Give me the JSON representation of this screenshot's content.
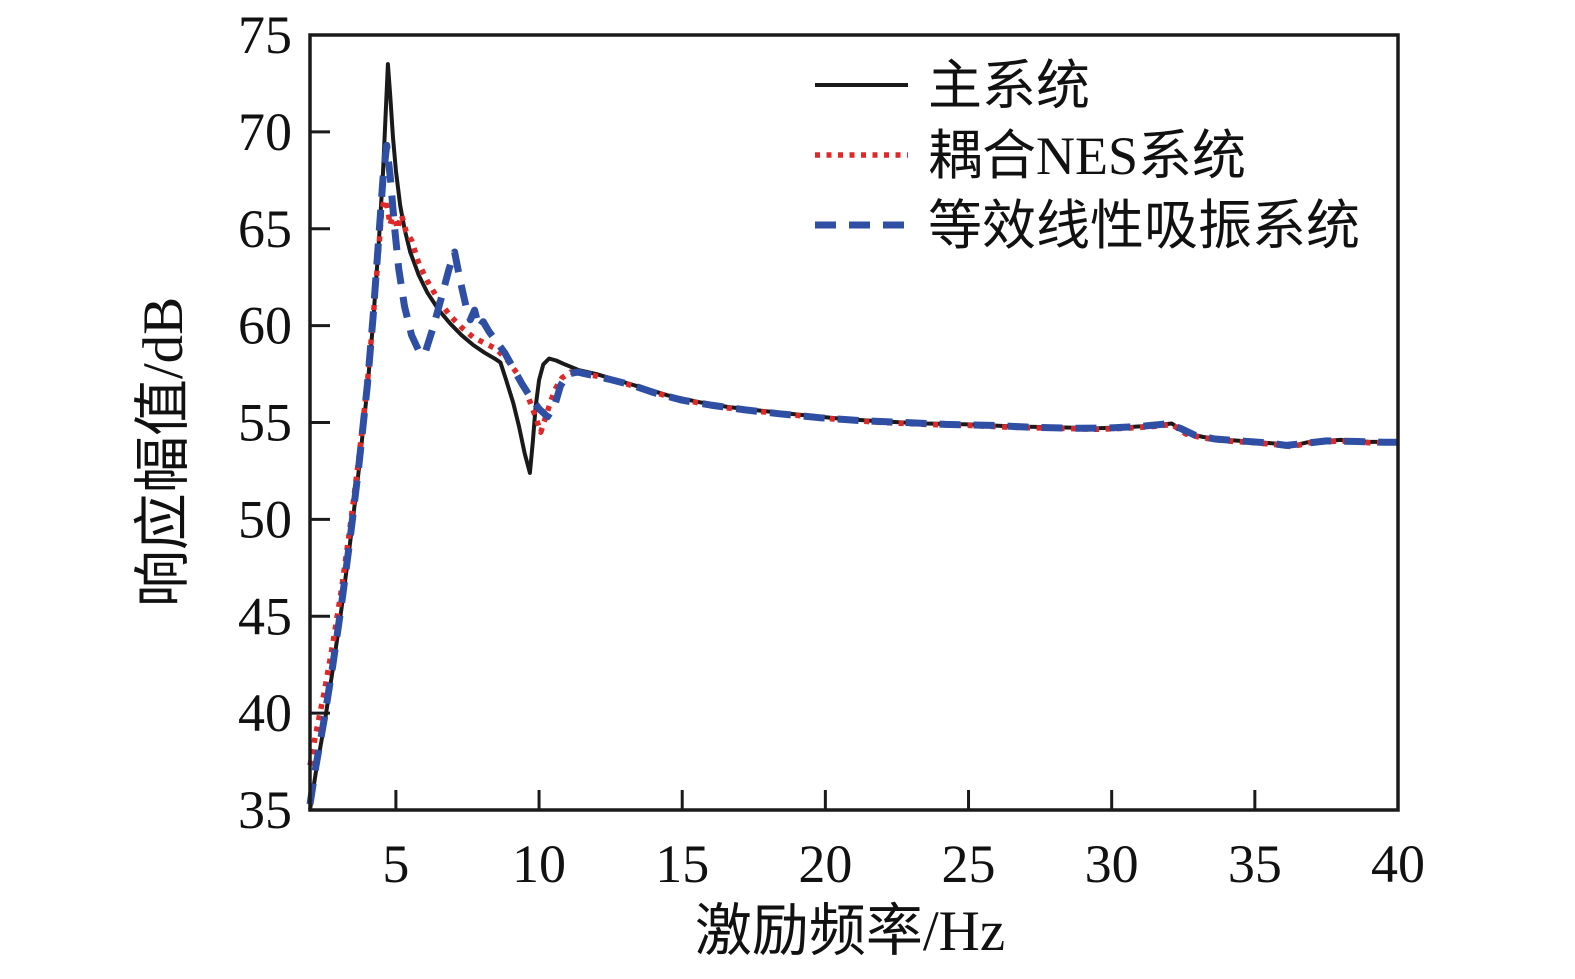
{
  "figure": {
    "background": "#ffffff",
    "frame_color": "#1a1a1a"
  },
  "chart_data": {
    "type": "line",
    "title": "",
    "xlabel": "激励频率/Hz",
    "ylabel": "响应幅值/dB",
    "xlim": [
      2,
      40
    ],
    "ylim": [
      35,
      75
    ],
    "xticks": [
      5,
      10,
      15,
      20,
      25,
      30,
      35,
      40
    ],
    "yticks": [
      35,
      40,
      45,
      50,
      55,
      60,
      65,
      70,
      75
    ],
    "grid": false,
    "legend_position": "top-right",
    "series": [
      {
        "name": "主系统",
        "style": "solid",
        "color": "#1a1a1a",
        "points": [
          [
            2,
            35.0
          ],
          [
            2.2,
            36.9
          ],
          [
            2.5,
            39.4
          ],
          [
            2.8,
            42.3
          ],
          [
            3.1,
            45.4
          ],
          [
            3.4,
            48.8
          ],
          [
            3.7,
            52.5
          ],
          [
            4.0,
            56.7
          ],
          [
            4.2,
            60.1
          ],
          [
            4.4,
            64.2
          ],
          [
            4.55,
            67.9
          ],
          [
            4.65,
            71.2
          ],
          [
            4.72,
            73.5
          ],
          [
            4.8,
            71.9
          ],
          [
            4.9,
            69.7
          ],
          [
            5.0,
            68.0
          ],
          [
            5.15,
            66.2
          ],
          [
            5.3,
            65.0
          ],
          [
            5.5,
            63.8
          ],
          [
            5.8,
            62.6
          ],
          [
            6.1,
            61.7
          ],
          [
            6.5,
            60.8
          ],
          [
            6.9,
            60.1
          ],
          [
            7.3,
            59.5
          ],
          [
            7.7,
            59.0
          ],
          [
            8.1,
            58.6
          ],
          [
            8.45,
            58.3
          ],
          [
            8.65,
            58.1
          ],
          [
            8.85,
            57.2
          ],
          [
            9.1,
            56.0
          ],
          [
            9.3,
            54.8
          ],
          [
            9.5,
            53.4
          ],
          [
            9.68,
            52.4
          ],
          [
            9.78,
            54.0
          ],
          [
            9.88,
            55.8
          ],
          [
            10.0,
            57.2
          ],
          [
            10.15,
            58.0
          ],
          [
            10.35,
            58.3
          ],
          [
            10.6,
            58.2
          ],
          [
            10.9,
            58.0
          ],
          [
            11.4,
            57.7
          ],
          [
            12.0,
            57.5
          ],
          [
            12.8,
            57.15
          ],
          [
            13.6,
            56.8
          ],
          [
            14.5,
            56.4
          ],
          [
            15.6,
            56.05
          ],
          [
            16.6,
            55.8
          ],
          [
            17.8,
            55.6
          ],
          [
            19.1,
            55.4
          ],
          [
            20.5,
            55.2
          ],
          [
            22,
            55.05
          ],
          [
            23.5,
            54.95
          ],
          [
            25,
            54.9
          ],
          [
            26.5,
            54.8
          ],
          [
            28,
            54.75
          ],
          [
            29.5,
            54.7
          ],
          [
            30.5,
            54.75
          ],
          [
            31.5,
            54.85
          ],
          [
            32.1,
            54.95
          ],
          [
            32.6,
            54.45
          ],
          [
            33.2,
            54.25
          ],
          [
            34,
            54.1
          ],
          [
            35,
            54.0
          ],
          [
            35.8,
            53.9
          ],
          [
            36.3,
            53.8
          ],
          [
            36.9,
            54.0
          ],
          [
            38,
            54.1
          ],
          [
            39,
            54.0
          ],
          [
            40,
            54.0
          ]
        ]
      },
      {
        "name": "耦合NES系统",
        "style": "dotted",
        "color": "#e02828",
        "points": [
          [
            2,
            37.3
          ],
          [
            2.2,
            38.9
          ],
          [
            2.5,
            41.1
          ],
          [
            2.8,
            43.6
          ],
          [
            3.1,
            46.4
          ],
          [
            3.4,
            49.6
          ],
          [
            3.7,
            53.1
          ],
          [
            4.0,
            57.0
          ],
          [
            4.2,
            60.3
          ],
          [
            4.35,
            63.0
          ],
          [
            4.5,
            65.9
          ],
          [
            4.6,
            66.5
          ],
          [
            4.7,
            66.1
          ],
          [
            4.8,
            65.2
          ],
          [
            4.92,
            65.9
          ],
          [
            5.05,
            65.0
          ],
          [
            5.2,
            65.7
          ],
          [
            5.35,
            64.9
          ],
          [
            5.55,
            64.4
          ],
          [
            5.8,
            63.2
          ],
          [
            6.1,
            62.3
          ],
          [
            6.5,
            61.3
          ],
          [
            6.9,
            60.5
          ],
          [
            7.3,
            59.9
          ],
          [
            7.7,
            59.4
          ],
          [
            8.1,
            59.1
          ],
          [
            8.5,
            58.8
          ],
          [
            8.9,
            58.2
          ],
          [
            9.25,
            57.5
          ],
          [
            9.55,
            56.6
          ],
          [
            9.85,
            55.4
          ],
          [
            10.06,
            54.5
          ],
          [
            10.3,
            55.6
          ],
          [
            10.55,
            56.7
          ],
          [
            10.8,
            57.3
          ],
          [
            11.1,
            57.6
          ],
          [
            11.6,
            57.5
          ],
          [
            12.0,
            57.4
          ],
          [
            12.8,
            57.1
          ],
          [
            13.6,
            56.75
          ],
          [
            14.5,
            56.35
          ],
          [
            15.6,
            56.0
          ],
          [
            16.6,
            55.75
          ],
          [
            17.8,
            55.55
          ],
          [
            19.1,
            55.35
          ],
          [
            20.5,
            55.15
          ],
          [
            22,
            55.0
          ],
          [
            23.5,
            54.9
          ],
          [
            25,
            54.85
          ],
          [
            26.5,
            54.75
          ],
          [
            28,
            54.7
          ],
          [
            29.5,
            54.65
          ],
          [
            30.5,
            54.7
          ],
          [
            31.5,
            54.8
          ],
          [
            32.1,
            54.9
          ],
          [
            32.6,
            54.4
          ],
          [
            33.2,
            54.2
          ],
          [
            34,
            54.05
          ],
          [
            35,
            53.95
          ],
          [
            35.8,
            53.85
          ],
          [
            36.3,
            53.75
          ],
          [
            36.9,
            53.95
          ],
          [
            38,
            54.05
          ],
          [
            39,
            53.95
          ],
          [
            40,
            53.95
          ]
        ]
      },
      {
        "name": "等效线性吸振系统",
        "style": "dashed",
        "color": "#2f4fa4",
        "points": [
          [
            2,
            35.3
          ],
          [
            2.2,
            37.2
          ],
          [
            2.5,
            39.7
          ],
          [
            2.8,
            42.5
          ],
          [
            3.1,
            45.6
          ],
          [
            3.4,
            49.0
          ],
          [
            3.7,
            52.7
          ],
          [
            4.0,
            56.9
          ],
          [
            4.2,
            60.4
          ],
          [
            4.4,
            64.5
          ],
          [
            4.55,
            67.6
          ],
          [
            4.68,
            69.3
          ],
          [
            4.8,
            67.7
          ],
          [
            4.95,
            65.1
          ],
          [
            5.1,
            62.9
          ],
          [
            5.3,
            61.0
          ],
          [
            5.55,
            59.5
          ],
          [
            5.8,
            58.7
          ],
          [
            6.0,
            58.5
          ],
          [
            6.3,
            59.9
          ],
          [
            6.6,
            61.5
          ],
          [
            6.85,
            62.9
          ],
          [
            7.05,
            63.8
          ],
          [
            7.25,
            62.3
          ],
          [
            7.45,
            61.0
          ],
          [
            7.6,
            60.3
          ],
          [
            7.75,
            60.8
          ],
          [
            7.9,
            59.9
          ],
          [
            8.05,
            60.2
          ],
          [
            8.25,
            59.7
          ],
          [
            8.5,
            59.2
          ],
          [
            8.8,
            58.6
          ],
          [
            9.1,
            57.8
          ],
          [
            9.4,
            57.0
          ],
          [
            9.7,
            56.3
          ],
          [
            10.0,
            55.7
          ],
          [
            10.3,
            55.3
          ],
          [
            10.55,
            55.9
          ],
          [
            10.75,
            56.9
          ],
          [
            11.0,
            57.5
          ],
          [
            11.35,
            57.6
          ],
          [
            11.8,
            57.45
          ],
          [
            12.4,
            57.25
          ],
          [
            13.2,
            56.95
          ],
          [
            14.0,
            56.55
          ],
          [
            15.0,
            56.15
          ],
          [
            16.0,
            55.9
          ],
          [
            17.2,
            55.65
          ],
          [
            18.4,
            55.45
          ],
          [
            19.8,
            55.25
          ],
          [
            21.2,
            55.1
          ],
          [
            22.8,
            55.0
          ],
          [
            24.2,
            54.9
          ],
          [
            25.8,
            54.85
          ],
          [
            27.2,
            54.75
          ],
          [
            28.8,
            54.7
          ],
          [
            30.0,
            54.72
          ],
          [
            31.0,
            54.8
          ],
          [
            31.9,
            54.92
          ],
          [
            32.4,
            54.7
          ],
          [
            32.9,
            54.35
          ],
          [
            33.6,
            54.15
          ],
          [
            34.5,
            54.05
          ],
          [
            35.4,
            53.95
          ],
          [
            36.1,
            53.82
          ],
          [
            36.6,
            53.9
          ],
          [
            37.5,
            54.05
          ],
          [
            38.6,
            54.02
          ],
          [
            39.5,
            53.98
          ],
          [
            40,
            53.98
          ]
        ]
      }
    ]
  }
}
